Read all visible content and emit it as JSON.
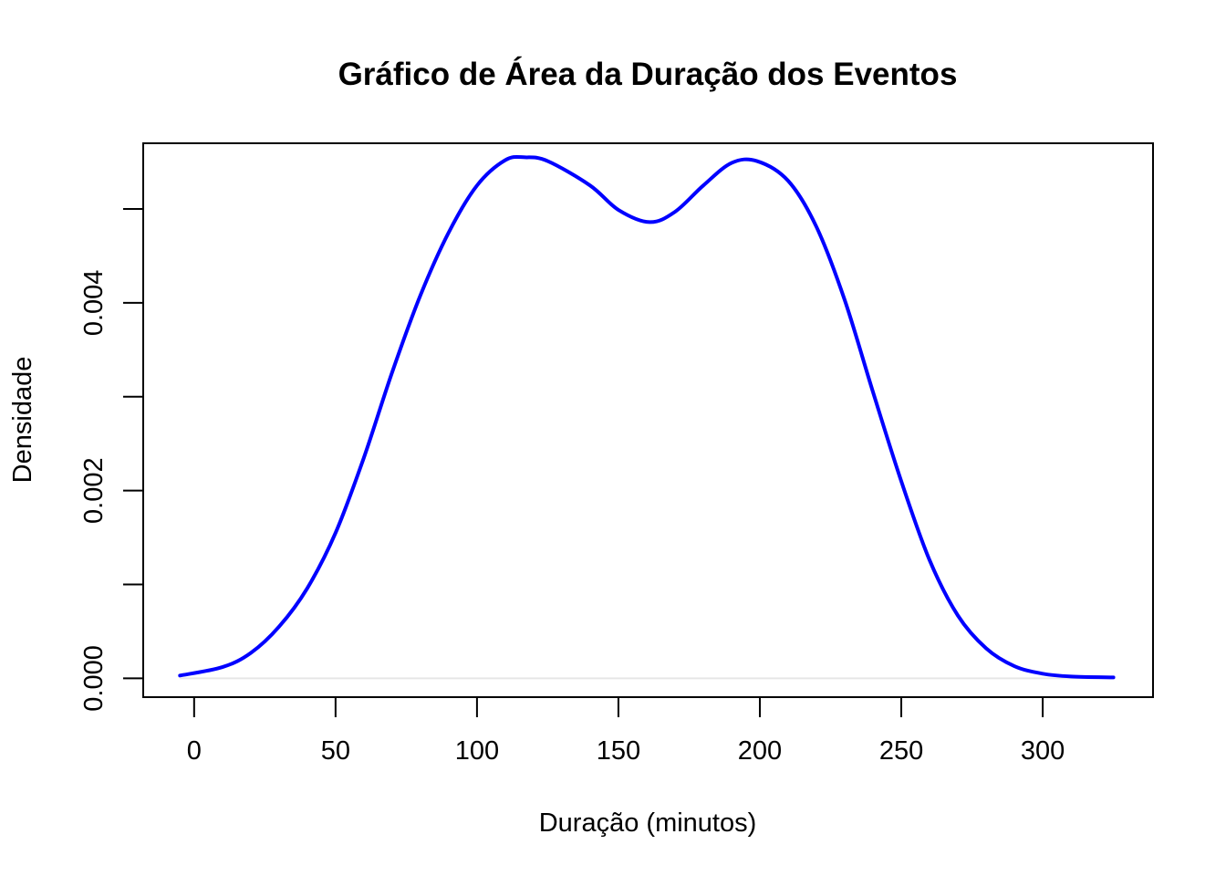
{
  "chart_data": {
    "type": "area",
    "title": "Gráfico de Área da Duração dos Eventos",
    "xlabel": "Duração (minutos)",
    "ylabel": "Densidade",
    "xlim": [
      -18,
      339
    ],
    "ylim": [
      -0.0002,
      0.0057
    ],
    "x_ticks": [
      0,
      50,
      100,
      150,
      200,
      250,
      300
    ],
    "x_tick_labels": [
      "0",
      "50",
      "100",
      "150",
      "200",
      "250",
      "300"
    ],
    "y_ticks": [
      0,
      0.001,
      0.002,
      0.003,
      0.004,
      0.005
    ],
    "y_tick_labels": [
      "0.000",
      "",
      "0.002",
      "",
      "0.004",
      ""
    ],
    "grid": false,
    "baseline": 0,
    "baseline_color": "#e6e6e6",
    "line_color": "#0000ff",
    "series": [
      {
        "x": [
          -5,
          10,
          20,
          30,
          40,
          50,
          60,
          70,
          80,
          90,
          100,
          110,
          117,
          125,
          140,
          150,
          161,
          170,
          180,
          190,
          199,
          210,
          220,
          230,
          240,
          250,
          260,
          270,
          280,
          290,
          300,
          310,
          325
        ],
        "y": [
          3e-05,
          0.00012,
          0.00027,
          0.00055,
          0.00096,
          0.00155,
          0.00235,
          0.00326,
          0.00408,
          0.00475,
          0.00525,
          0.00552,
          0.00555,
          0.00551,
          0.00525,
          0.00499,
          0.00486,
          0.00497,
          0.00525,
          0.00549,
          0.00551,
          0.0053,
          0.00481,
          0.00403,
          0.00305,
          0.0021,
          0.00126,
          0.00067,
          0.00032,
          0.00013,
          5e-05,
          2e-05,
          1e-05
        ]
      }
    ]
  }
}
